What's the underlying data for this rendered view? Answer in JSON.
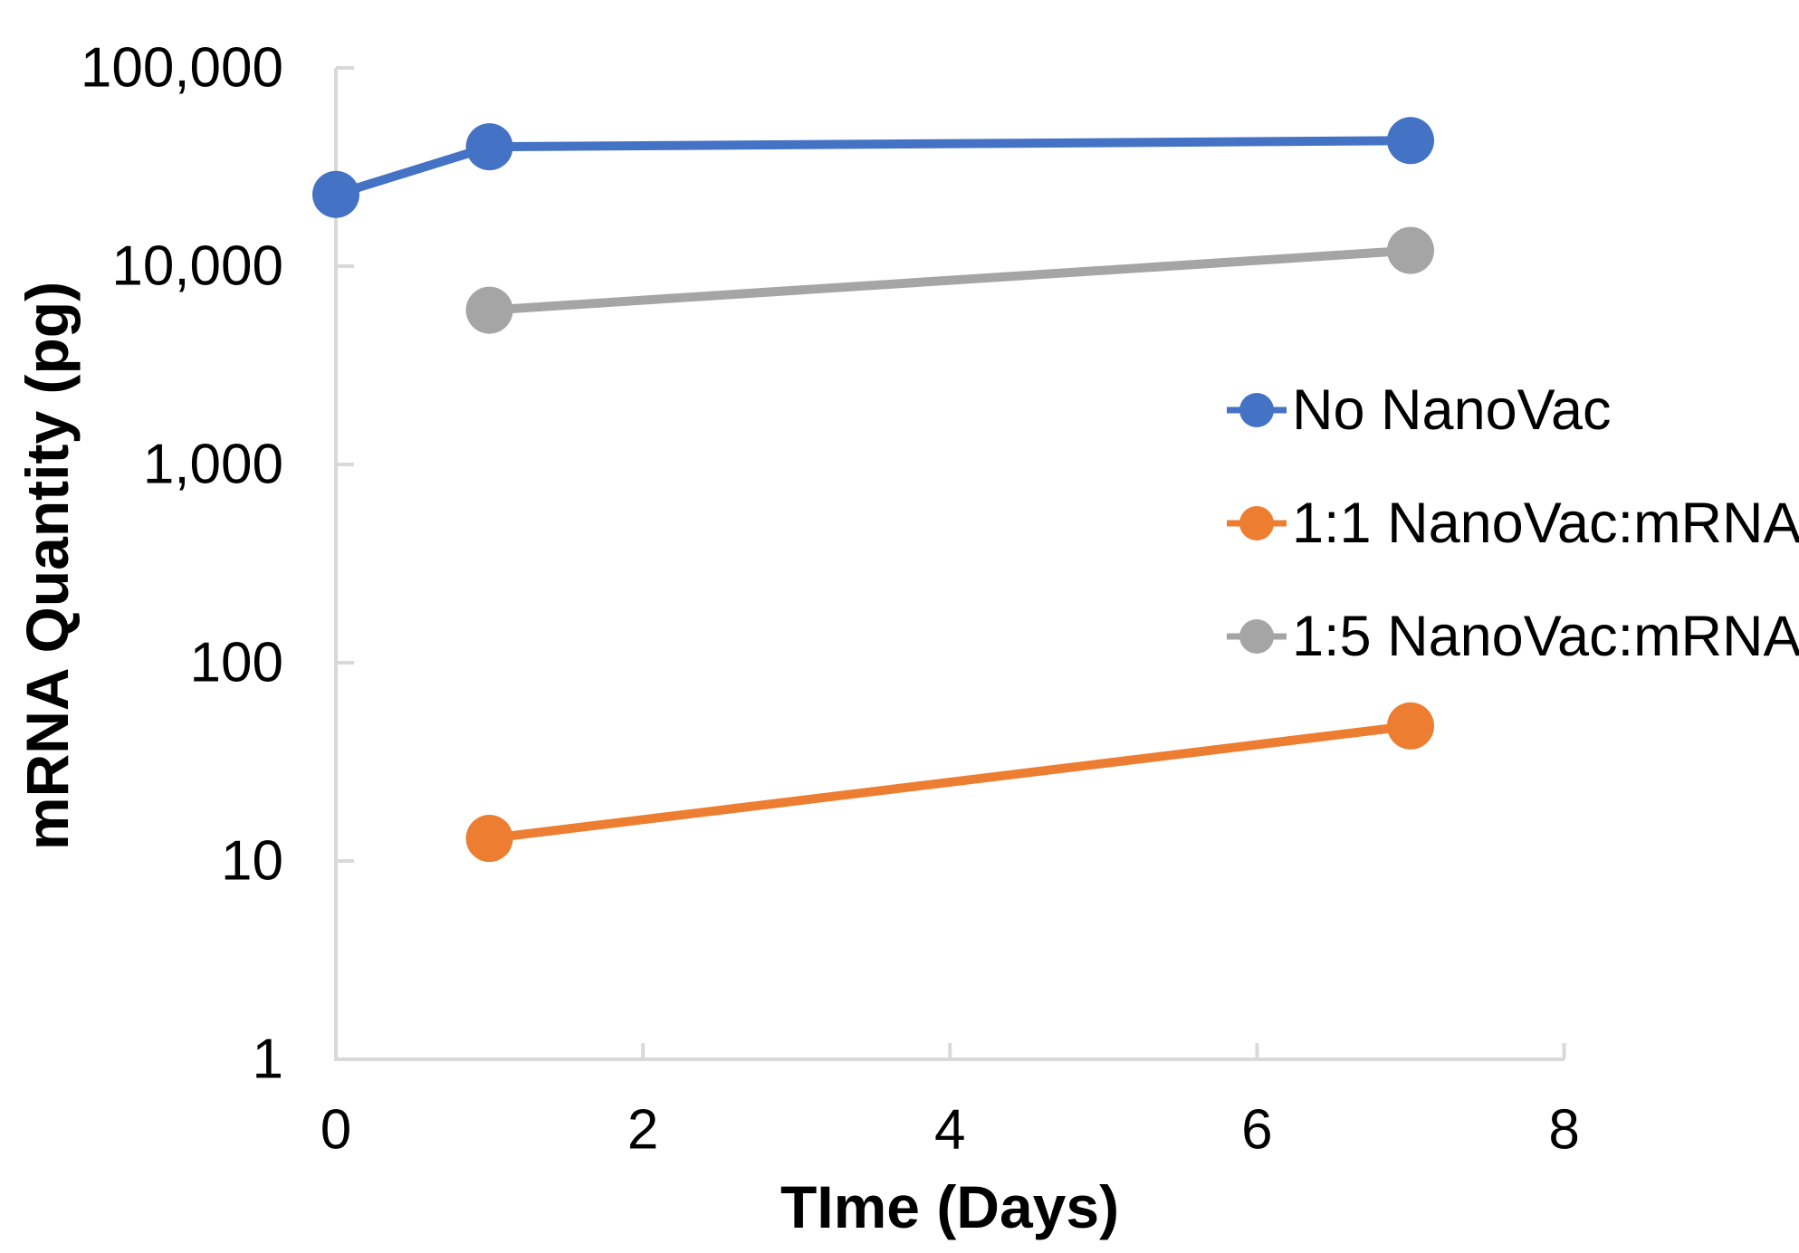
{
  "page": {
    "background": "#ffffff"
  },
  "chart_data": {
    "type": "line",
    "title": "",
    "xlabel": "TIme (Days)",
    "ylabel": "mRNA Quantity (pg)",
    "x_scale": "linear",
    "y_scale": "log",
    "xlim": [
      0,
      8
    ],
    "ylim": [
      1,
      100000
    ],
    "x_ticks": [
      0,
      2,
      4,
      6,
      8
    ],
    "y_ticks": [
      100000,
      10000,
      1000,
      100,
      10,
      1
    ],
    "y_tick_labels": [
      "100,000",
      "10,000",
      "1,000",
      "100",
      "10",
      "1"
    ],
    "grid": false,
    "legend_position": "center-right",
    "axis_color": "#D9D9D9",
    "text_color": "#000000",
    "series": [
      {
        "name": "No NanoVac",
        "color": "#4472C4",
        "x": [
          0,
          1,
          7
        ],
        "values": [
          23000,
          40000,
          43000
        ]
      },
      {
        "name": "1:1 NanoVac:mRNA",
        "color": "#ED7D31",
        "x": [
          1,
          7
        ],
        "values": [
          13,
          48
        ]
      },
      {
        "name": "1:5 NanoVac:mRNA",
        "color": "#A5A5A5",
        "x": [
          1,
          7
        ],
        "values": [
          6000,
          12000
        ]
      }
    ]
  }
}
